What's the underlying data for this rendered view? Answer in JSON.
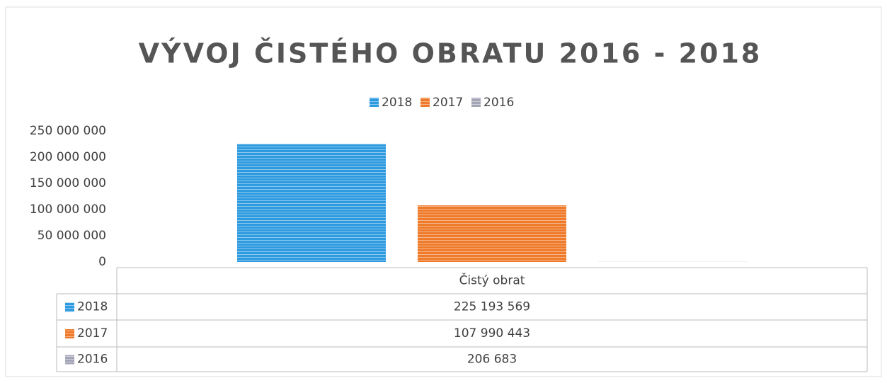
{
  "chart_data": {
    "type": "bar",
    "title": "VÝVOJ ČISTÉHO OBRATU 2016 - 2018",
    "categories": [
      "Čistý obrat"
    ],
    "series": [
      {
        "name": "2018",
        "color": "#2e9be0",
        "values": [
          225193569
        ],
        "value_labels": [
          "225 193 569"
        ]
      },
      {
        "name": "2017",
        "color": "#ee7a2a",
        "values": [
          107990443
        ],
        "value_labels": [
          "107 990 443"
        ]
      },
      {
        "name": "2016",
        "color": "#a5a5b8",
        "values": [
          206683
        ],
        "value_labels": [
          "206 683"
        ]
      }
    ],
    "ylim": [
      0,
      250000000
    ],
    "yticks": [
      0,
      {
        "value": 50000000,
        "label": "50 000 000"
      },
      {
        "value": 100000000,
        "label": "100 000 000"
      },
      {
        "value": 150000000,
        "label": "150 000 000"
      },
      {
        "value": 200000000,
        "label": "200 000 000"
      },
      {
        "value": 250000000,
        "label": "250 000 000"
      }
    ],
    "grid": false,
    "legend": "top"
  }
}
